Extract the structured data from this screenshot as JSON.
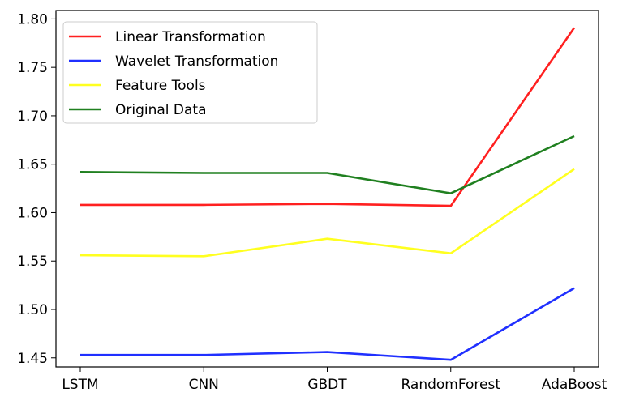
{
  "chart_data": {
    "type": "line",
    "categories": [
      "LSTM",
      "CNN",
      "GBDT",
      "RandomForest",
      "AdaBoost"
    ],
    "series": [
      {
        "name": "Linear Transformation",
        "color": "#ff2020",
        "values": [
          1.608,
          1.608,
          1.609,
          1.607,
          1.791
        ]
      },
      {
        "name": "Wavelet Transformation",
        "color": "#2030ff",
        "values": [
          1.453,
          1.453,
          1.456,
          1.448,
          1.522
        ]
      },
      {
        "name": "Feature Tools",
        "color": "#ffff20",
        "values": [
          1.556,
          1.555,
          1.573,
          1.558,
          1.645
        ]
      },
      {
        "name": "Original Data",
        "color": "#208020",
        "values": [
          1.642,
          1.641,
          1.641,
          1.62,
          1.679
        ]
      }
    ],
    "yticks": [
      "1.45",
      "1.50",
      "1.55",
      "1.60",
      "1.65",
      "1.70",
      "1.75",
      "1.80"
    ],
    "ylim": [
      1.4406,
      1.8087
    ],
    "grid": false,
    "legend_position": "top-left",
    "title": "",
    "xlabel": "",
    "ylabel": ""
  }
}
